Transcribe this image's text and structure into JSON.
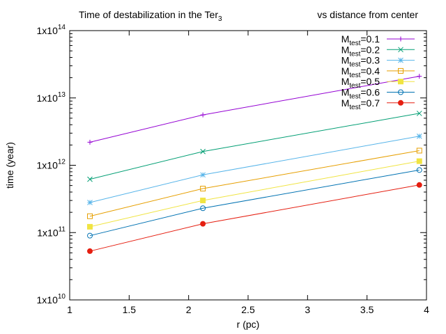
{
  "chart_data": {
    "type": "line",
    "title": "Time of destabilization in the Ter",
    "title_subscript": "3",
    "subtitle": "vs distance from center",
    "xlabel": "r (pc)",
    "ylabel": "time (year)",
    "xlim": [
      1,
      4
    ],
    "ylim": [
      10000000000.0,
      100000000000000.0
    ],
    "y_scale": "log",
    "grid": false,
    "legend_position": "top-right",
    "x_ticks": [
      1,
      1.5,
      2,
      2.5,
      3,
      3.5,
      4
    ],
    "x_tick_labels": [
      "1",
      "1.5",
      "2",
      "2.5",
      "3",
      "3.5",
      "4"
    ],
    "y_ticks": [
      10000000000.0,
      100000000000.0,
      1000000000000.0,
      10000000000000.0,
      100000000000000.0
    ],
    "y_tick_labels": [
      {
        "base": "1x10",
        "exp": "10"
      },
      {
        "base": "1x10",
        "exp": "11"
      },
      {
        "base": "1x10",
        "exp": "12"
      },
      {
        "base": "1x10",
        "exp": "13"
      },
      {
        "base": "1x10",
        "exp": "14"
      }
    ],
    "x": [
      1.17,
      2.12,
      3.94
    ],
    "series": [
      {
        "name": "M",
        "name_sub": "test",
        "name_suffix": "=0.1",
        "color": "#9400d3",
        "marker": "plus",
        "values": [
          2200000000000.0,
          5600000000000.0,
          21000000000000.0
        ]
      },
      {
        "name": "M",
        "name_sub": "test",
        "name_suffix": "=0.2",
        "color": "#009e73",
        "marker": "cross",
        "values": [
          620000000000.0,
          1600000000000.0,
          5900000000000.0
        ]
      },
      {
        "name": "M",
        "name_sub": "test",
        "name_suffix": "=0.3",
        "color": "#56b4e9",
        "marker": "star",
        "values": [
          280000000000.0,
          720000000000.0,
          2700000000000.0
        ]
      },
      {
        "name": "M",
        "name_sub": "test",
        "name_suffix": "=0.4",
        "color": "#e69f00",
        "marker": "open-square",
        "values": [
          175000000000.0,
          450000000000.0,
          1650000000000.0
        ]
      },
      {
        "name": "M",
        "name_sub": "test",
        "name_suffix": "=0.5",
        "color": "#f0e442",
        "marker": "filled-square",
        "values": [
          122000000000.0,
          300000000000.0,
          1150000000000.0
        ]
      },
      {
        "name": "M",
        "name_sub": "test",
        "name_suffix": "=0.6",
        "color": "#0072b2",
        "marker": "open-circle",
        "values": [
          90000000000.0,
          230000000000.0,
          850000000000.0
        ]
      },
      {
        "name": "M",
        "name_sub": "test",
        "name_suffix": "=0.7",
        "color": "#e51e10",
        "marker": "filled-circle",
        "values": [
          53000000000.0,
          135000000000.0,
          510000000000.0
        ]
      }
    ]
  }
}
